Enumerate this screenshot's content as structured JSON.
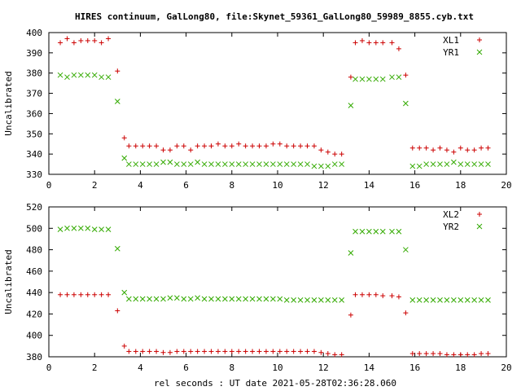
{
  "title": "HIRES continuum, GalLong80, file:Skynet_59361_GalLong80_59989_8855.cyb.txt",
  "xlabel": "rel seconds : UT date 2021-05-28T02:36:28.060",
  "chart_data": [
    {
      "type": "scatter",
      "ylabel": "Uncalibrated",
      "xlim": [
        0,
        20
      ],
      "ylim": [
        330,
        400
      ],
      "xticks": [
        0,
        2,
        4,
        6,
        8,
        10,
        12,
        14,
        16,
        18,
        20
      ],
      "yticks": [
        330,
        340,
        350,
        360,
        370,
        380,
        390,
        400
      ],
      "legend_position": "top-right",
      "series": [
        {
          "name": "XL1",
          "color": "#cc0000",
          "marker": "plus",
          "x": [
            0.5,
            0.8,
            1.1,
            1.4,
            1.7,
            2.0,
            2.3,
            2.6,
            3.0,
            3.3,
            3.5,
            3.8,
            4.1,
            4.4,
            4.7,
            5.0,
            5.3,
            5.6,
            5.9,
            6.2,
            6.5,
            6.8,
            7.1,
            7.4,
            7.7,
            8.0,
            8.3,
            8.6,
            8.9,
            9.2,
            9.5,
            9.8,
            10.1,
            10.4,
            10.7,
            11.0,
            11.3,
            11.6,
            11.9,
            12.2,
            12.5,
            12.8,
            13.2,
            13.4,
            13.7,
            14.0,
            14.3,
            14.6,
            15.0,
            15.3,
            15.6,
            15.9,
            16.2,
            16.5,
            16.8,
            17.1,
            17.4,
            17.7,
            18.0,
            18.3,
            18.6,
            18.9,
            19.2
          ],
          "y": [
            395,
            397,
            395,
            396,
            396,
            396,
            395,
            397,
            381,
            348,
            344,
            344,
            344,
            344,
            344,
            342,
            342,
            344,
            344,
            342,
            344,
            344,
            344,
            345,
            344,
            344,
            345,
            344,
            344,
            344,
            344,
            345,
            345,
            344,
            344,
            344,
            344,
            344,
            342,
            341,
            340,
            340,
            378,
            395,
            396,
            395,
            395,
            395,
            395,
            392,
            379,
            343,
            343,
            343,
            342,
            343,
            342,
            341,
            343,
            342,
            342,
            343,
            343
          ]
        },
        {
          "name": "YR1",
          "color": "#33aa00",
          "marker": "x",
          "x": [
            0.5,
            0.8,
            1.1,
            1.4,
            1.7,
            2.0,
            2.3,
            2.6,
            3.0,
            3.3,
            3.5,
            3.8,
            4.1,
            4.4,
            4.7,
            5.0,
            5.3,
            5.6,
            5.9,
            6.2,
            6.5,
            6.8,
            7.1,
            7.4,
            7.7,
            8.0,
            8.3,
            8.6,
            8.9,
            9.2,
            9.5,
            9.8,
            10.1,
            10.4,
            10.7,
            11.0,
            11.3,
            11.6,
            11.9,
            12.2,
            12.5,
            12.8,
            13.2,
            13.4,
            13.7,
            14.0,
            14.3,
            14.6,
            15.0,
            15.3,
            15.6,
            15.9,
            16.2,
            16.5,
            16.8,
            17.1,
            17.4,
            17.7,
            18.0,
            18.3,
            18.6,
            18.9,
            19.2
          ],
          "y": [
            379,
            378,
            379,
            379,
            379,
            379,
            378,
            378,
            366,
            338,
            335,
            335,
            335,
            335,
            335,
            336,
            336,
            335,
            335,
            335,
            336,
            335,
            335,
            335,
            335,
            335,
            335,
            335,
            335,
            335,
            335,
            335,
            335,
            335,
            335,
            335,
            335,
            334,
            334,
            334,
            335,
            335,
            364,
            377,
            377,
            377,
            377,
            377,
            378,
            378,
            365,
            334,
            334,
            335,
            335,
            335,
            335,
            336,
            335,
            335,
            335,
            335,
            335
          ]
        }
      ]
    },
    {
      "type": "scatter",
      "ylabel": "Uncalibrated",
      "xlim": [
        0,
        20
      ],
      "ylim": [
        380,
        520
      ],
      "xticks": [
        0,
        2,
        4,
        6,
        8,
        10,
        12,
        14,
        16,
        18,
        20
      ],
      "yticks": [
        380,
        400,
        420,
        440,
        460,
        480,
        500,
        520
      ],
      "legend_position": "top-right",
      "series": [
        {
          "name": "XL2",
          "color": "#cc0000",
          "marker": "plus",
          "x": [
            0.5,
            0.8,
            1.1,
            1.4,
            1.7,
            2.0,
            2.3,
            2.6,
            3.0,
            3.3,
            3.5,
            3.8,
            4.1,
            4.4,
            4.7,
            5.0,
            5.3,
            5.6,
            5.9,
            6.2,
            6.5,
            6.8,
            7.1,
            7.4,
            7.7,
            8.0,
            8.3,
            8.6,
            8.9,
            9.2,
            9.5,
            9.8,
            10.1,
            10.4,
            10.7,
            11.0,
            11.3,
            11.6,
            11.9,
            12.2,
            12.5,
            12.8,
            13.2,
            13.4,
            13.7,
            14.0,
            14.3,
            14.6,
            15.0,
            15.3,
            15.6,
            15.9,
            16.2,
            16.5,
            16.8,
            17.1,
            17.4,
            17.7,
            18.0,
            18.3,
            18.6,
            18.9,
            19.2
          ],
          "y": [
            438,
            438,
            438,
            438,
            438,
            438,
            438,
            438,
            423,
            390,
            385,
            385,
            385,
            385,
            385,
            384,
            384,
            385,
            385,
            385,
            385,
            385,
            385,
            385,
            385,
            385,
            385,
            385,
            385,
            385,
            385,
            385,
            385,
            385,
            385,
            385,
            385,
            385,
            384,
            383,
            382,
            382,
            419,
            438,
            438,
            438,
            438,
            437,
            437,
            436,
            421,
            383,
            383,
            383,
            383,
            383,
            382,
            382,
            382,
            382,
            382,
            383,
            383
          ]
        },
        {
          "name": "YR2",
          "color": "#33aa00",
          "marker": "x",
          "x": [
            0.5,
            0.8,
            1.1,
            1.4,
            1.7,
            2.0,
            2.3,
            2.6,
            3.0,
            3.3,
            3.5,
            3.8,
            4.1,
            4.4,
            4.7,
            5.0,
            5.3,
            5.6,
            5.9,
            6.2,
            6.5,
            6.8,
            7.1,
            7.4,
            7.7,
            8.0,
            8.3,
            8.6,
            8.9,
            9.2,
            9.5,
            9.8,
            10.1,
            10.4,
            10.7,
            11.0,
            11.3,
            11.6,
            11.9,
            12.2,
            12.5,
            12.8,
            13.2,
            13.4,
            13.7,
            14.0,
            14.3,
            14.6,
            15.0,
            15.3,
            15.6,
            15.9,
            16.2,
            16.5,
            16.8,
            17.1,
            17.4,
            17.7,
            18.0,
            18.3,
            18.6,
            18.9,
            19.2
          ],
          "y": [
            499,
            500,
            500,
            500,
            500,
            499,
            499,
            499,
            481,
            440,
            434,
            434,
            434,
            434,
            434,
            434,
            435,
            435,
            434,
            434,
            435,
            434,
            434,
            434,
            434,
            434,
            434,
            434,
            434,
            434,
            434,
            434,
            434,
            433,
            433,
            433,
            433,
            433,
            433,
            433,
            433,
            433,
            477,
            497,
            497,
            497,
            497,
            497,
            497,
            497,
            480,
            433,
            433,
            433,
            433,
            433,
            433,
            433,
            433,
            433,
            433,
            433,
            433
          ]
        }
      ]
    }
  ]
}
